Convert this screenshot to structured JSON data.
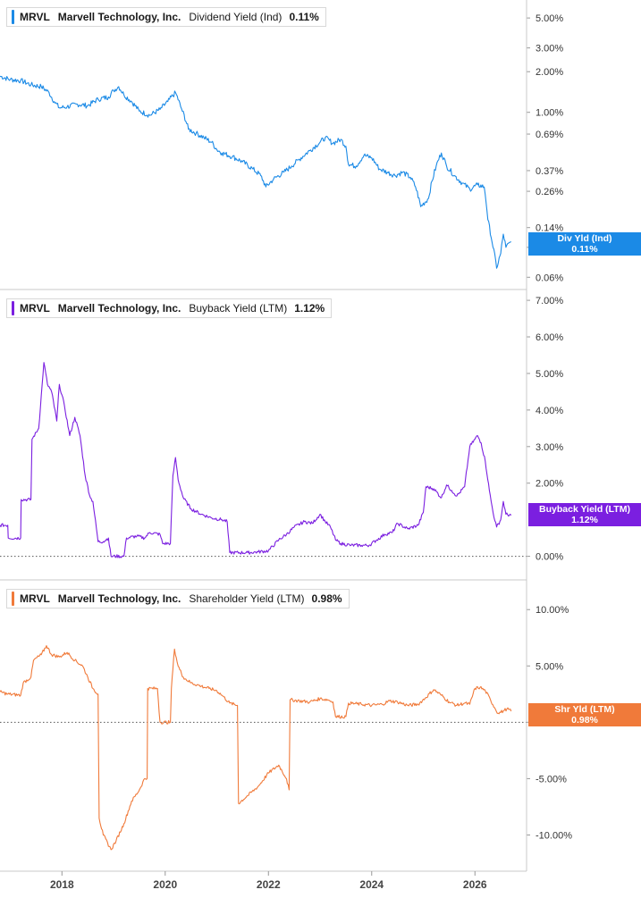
{
  "chart_data": [
    {
      "type": "line",
      "ticker": "MRVL",
      "company": "Marvell Technology, Inc.",
      "metric": "Dividend Yield (Ind)",
      "current_value": "0.11%",
      "tag_label": "Div Yld (Ind)",
      "color": "#1b8ae6",
      "y_scale": "log",
      "ylim": [
        0.055,
        6.2
      ],
      "y_ticks": [
        {
          "value": 5.0,
          "label": "5.00%"
        },
        {
          "value": 3.0,
          "label": "3.00%"
        },
        {
          "value": 2.0,
          "label": "2.00%"
        },
        {
          "value": 1.0,
          "label": "1.00%"
        },
        {
          "value": 0.69,
          "label": "0.69%"
        },
        {
          "value": 0.37,
          "label": "0.37%"
        },
        {
          "value": 0.26,
          "label": "0.26%"
        },
        {
          "value": 0.14,
          "label": "0.14%"
        },
        {
          "value": 0.1,
          "label": "0.1"
        },
        {
          "value": 0.06,
          "label": "0.06%"
        }
      ],
      "zero_line": false,
      "points": [
        [
          2016.8,
          1.85
        ],
        [
          2017.0,
          1.75
        ],
        [
          2017.2,
          1.72
        ],
        [
          2017.4,
          1.6
        ],
        [
          2017.6,
          1.55
        ],
        [
          2017.75,
          1.4
        ],
        [
          2017.85,
          1.2
        ],
        [
          2017.95,
          1.08
        ],
        [
          2018.1,
          1.1
        ],
        [
          2018.3,
          1.15
        ],
        [
          2018.5,
          1.12
        ],
        [
          2018.7,
          1.25
        ],
        [
          2018.9,
          1.3
        ],
        [
          2019.0,
          1.45
        ],
        [
          2019.1,
          1.55
        ],
        [
          2019.2,
          1.35
        ],
        [
          2019.35,
          1.2
        ],
        [
          2019.5,
          1.02
        ],
        [
          2019.7,
          0.95
        ],
        [
          2019.9,
          1.05
        ],
        [
          2020.05,
          1.2
        ],
        [
          2020.2,
          1.4
        ],
        [
          2020.3,
          1.1
        ],
        [
          2020.45,
          0.75
        ],
        [
          2020.6,
          0.7
        ],
        [
          2020.75,
          0.65
        ],
        [
          2020.9,
          0.6
        ],
        [
          2021.0,
          0.53
        ],
        [
          2021.1,
          0.5
        ],
        [
          2021.3,
          0.47
        ],
        [
          2021.5,
          0.43
        ],
        [
          2021.7,
          0.38
        ],
        [
          2021.85,
          0.34
        ],
        [
          2021.95,
          0.28
        ],
        [
          2022.1,
          0.32
        ],
        [
          2022.3,
          0.36
        ],
        [
          2022.45,
          0.4
        ],
        [
          2022.6,
          0.45
        ],
        [
          2022.8,
          0.52
        ],
        [
          2023.0,
          0.6
        ],
        [
          2023.1,
          0.65
        ],
        [
          2023.25,
          0.59
        ],
        [
          2023.4,
          0.63
        ],
        [
          2023.5,
          0.56
        ],
        [
          2023.55,
          0.41
        ],
        [
          2023.7,
          0.4
        ],
        [
          2023.85,
          0.48
        ],
        [
          2024.0,
          0.46
        ],
        [
          2024.15,
          0.38
        ],
        [
          2024.3,
          0.36
        ],
        [
          2024.45,
          0.34
        ],
        [
          2024.6,
          0.36
        ],
        [
          2024.75,
          0.33
        ],
        [
          2024.85,
          0.28
        ],
        [
          2024.95,
          0.2
        ],
        [
          2025.1,
          0.23
        ],
        [
          2025.25,
          0.4
        ],
        [
          2025.35,
          0.5
        ],
        [
          2025.45,
          0.4
        ],
        [
          2025.6,
          0.34
        ],
        [
          2025.75,
          0.3
        ],
        [
          2025.9,
          0.27
        ],
        [
          2026.05,
          0.29
        ],
        [
          2026.18,
          0.28
        ],
        [
          2026.25,
          0.16
        ],
        [
          2026.33,
          0.11
        ],
        [
          2026.42,
          0.07
        ],
        [
          2026.5,
          0.09
        ],
        [
          2026.55,
          0.125
        ],
        [
          2026.6,
          0.1
        ],
        [
          2026.7,
          0.11
        ]
      ]
    },
    {
      "type": "line",
      "ticker": "MRVL",
      "company": "Marvell Technology, Inc.",
      "metric": "Buyback Yield (LTM)",
      "current_value": "1.12%",
      "tag_label": "Buyback Yield (LTM)",
      "color": "#7b1fe0",
      "y_scale": "linear",
      "ylim": [
        -0.45,
        7.1
      ],
      "y_ticks": [
        {
          "value": 7,
          "label": "7.00%"
        },
        {
          "value": 6,
          "label": "6.00%"
        },
        {
          "value": 5,
          "label": "5.00%"
        },
        {
          "value": 4,
          "label": "4.00%"
        },
        {
          "value": 3,
          "label": "3.00%"
        },
        {
          "value": 2,
          "label": "2.00%"
        },
        {
          "value": 0,
          "label": "0.00%"
        }
      ],
      "zero_line": true,
      "points": [
        [
          2016.8,
          0.85
        ],
        [
          2016.95,
          0.85
        ],
        [
          2016.96,
          0.5
        ],
        [
          2017.2,
          0.5
        ],
        [
          2017.21,
          1.55
        ],
        [
          2017.4,
          1.55
        ],
        [
          2017.42,
          3.2
        ],
        [
          2017.55,
          3.5
        ],
        [
          2017.65,
          5.3
        ],
        [
          2017.72,
          4.7
        ],
        [
          2017.8,
          4.5
        ],
        [
          2017.9,
          3.7
        ],
        [
          2017.95,
          4.7
        ],
        [
          2018.05,
          4.1
        ],
        [
          2018.15,
          3.3
        ],
        [
          2018.25,
          3.8
        ],
        [
          2018.35,
          3.3
        ],
        [
          2018.45,
          2.2
        ],
        [
          2018.55,
          1.6
        ],
        [
          2018.6,
          1.5
        ],
        [
          2018.7,
          0.4
        ],
        [
          2018.8,
          0.4
        ],
        [
          2018.9,
          0.5
        ],
        [
          2018.95,
          0.0
        ],
        [
          2019.2,
          0.0
        ],
        [
          2019.25,
          0.5
        ],
        [
          2019.45,
          0.55
        ],
        [
          2019.6,
          0.5
        ],
        [
          2019.7,
          0.65
        ],
        [
          2019.9,
          0.6
        ],
        [
          2019.95,
          0.35
        ],
        [
          2020.1,
          0.35
        ],
        [
          2020.15,
          2.2
        ],
        [
          2020.2,
          2.7
        ],
        [
          2020.25,
          2.1
        ],
        [
          2020.35,
          1.6
        ],
        [
          2020.5,
          1.3
        ],
        [
          2020.7,
          1.15
        ],
        [
          2020.9,
          1.05
        ],
        [
          2021.1,
          1.0
        ],
        [
          2021.2,
          0.95
        ],
        [
          2021.25,
          0.1
        ],
        [
          2021.6,
          0.1
        ],
        [
          2021.8,
          0.12
        ],
        [
          2022.0,
          0.15
        ],
        [
          2022.2,
          0.45
        ],
        [
          2022.35,
          0.6
        ],
        [
          2022.5,
          0.8
        ],
        [
          2022.7,
          0.95
        ],
        [
          2022.85,
          0.9
        ],
        [
          2023.0,
          1.15
        ],
        [
          2023.1,
          0.95
        ],
        [
          2023.2,
          0.8
        ],
        [
          2023.3,
          0.45
        ],
        [
          2023.4,
          0.35
        ],
        [
          2023.6,
          0.3
        ],
        [
          2023.8,
          0.3
        ],
        [
          2023.95,
          0.3
        ],
        [
          2024.1,
          0.45
        ],
        [
          2024.25,
          0.6
        ],
        [
          2024.4,
          0.65
        ],
        [
          2024.5,
          0.9
        ],
        [
          2024.7,
          0.75
        ],
        [
          2024.9,
          0.85
        ],
        [
          2025.0,
          1.2
        ],
        [
          2025.05,
          1.9
        ],
        [
          2025.2,
          1.85
        ],
        [
          2025.35,
          1.6
        ],
        [
          2025.45,
          1.95
        ],
        [
          2025.55,
          1.8
        ],
        [
          2025.65,
          1.65
        ],
        [
          2025.8,
          1.9
        ],
        [
          2025.9,
          3.0
        ],
        [
          2026.05,
          3.3
        ],
        [
          2026.12,
          3.1
        ],
        [
          2026.2,
          2.6
        ],
        [
          2026.28,
          1.8
        ],
        [
          2026.35,
          1.2
        ],
        [
          2026.42,
          0.8
        ],
        [
          2026.5,
          1.0
        ],
        [
          2026.55,
          1.5
        ],
        [
          2026.6,
          1.15
        ],
        [
          2026.7,
          1.12
        ]
      ]
    },
    {
      "type": "line",
      "ticker": "MRVL",
      "company": "Marvell Technology, Inc.",
      "metric": "Shareholder Yield (LTM)",
      "current_value": "0.98%",
      "tag_label": "Shr Yld (LTM)",
      "color": "#f07a3a",
      "y_scale": "linear",
      "ylim": [
        -12.5,
        12.0
      ],
      "y_ticks": [
        {
          "value": 10,
          "label": "10.00%"
        },
        {
          "value": 5,
          "label": "5.00%"
        },
        {
          "value": 0,
          "label": "0.00%"
        },
        {
          "value": -5,
          "label": "-5.00%"
        },
        {
          "value": -10,
          "label": "-10.00%"
        }
      ],
      "zero_line": true,
      "points": [
        [
          2016.8,
          2.7
        ],
        [
          2016.95,
          2.5
        ],
        [
          2017.2,
          2.4
        ],
        [
          2017.25,
          3.5
        ],
        [
          2017.4,
          4.0
        ],
        [
          2017.45,
          5.5
        ],
        [
          2017.6,
          6.0
        ],
        [
          2017.7,
          6.8
        ],
        [
          2017.8,
          6.0
        ],
        [
          2017.95,
          5.8
        ],
        [
          2018.1,
          6.2
        ],
        [
          2018.25,
          5.5
        ],
        [
          2018.4,
          5.0
        ],
        [
          2018.5,
          4.0
        ],
        [
          2018.6,
          3.0
        ],
        [
          2018.7,
          2.5
        ],
        [
          2018.72,
          -8.5
        ],
        [
          2018.8,
          -10.0
        ],
        [
          2018.95,
          -11.3
        ],
        [
          2019.05,
          -10.5
        ],
        [
          2019.2,
          -9.0
        ],
        [
          2019.35,
          -7.0
        ],
        [
          2019.5,
          -6.0
        ],
        [
          2019.6,
          -5.0
        ],
        [
          2019.65,
          -5.0
        ],
        [
          2019.66,
          3.0
        ],
        [
          2019.85,
          3.0
        ],
        [
          2019.9,
          0.0
        ],
        [
          2020.1,
          0.0
        ],
        [
          2020.12,
          3.0
        ],
        [
          2020.18,
          6.5
        ],
        [
          2020.25,
          5.0
        ],
        [
          2020.35,
          4.0
        ],
        [
          2020.5,
          3.5
        ],
        [
          2020.7,
          3.2
        ],
        [
          2020.85,
          3.0
        ],
        [
          2021.0,
          2.8
        ],
        [
          2021.1,
          2.4
        ],
        [
          2021.25,
          1.7
        ],
        [
          2021.4,
          1.5
        ],
        [
          2021.42,
          -7.2
        ],
        [
          2021.6,
          -6.5
        ],
        [
          2021.8,
          -5.7
        ],
        [
          2022.0,
          -4.5
        ],
        [
          2022.2,
          -3.8
        ],
        [
          2022.35,
          -5.0
        ],
        [
          2022.4,
          -6.0
        ],
        [
          2022.42,
          2.0
        ],
        [
          2022.6,
          1.9
        ],
        [
          2022.8,
          1.8
        ],
        [
          2023.0,
          2.1
        ],
        [
          2023.15,
          2.0
        ],
        [
          2023.25,
          1.8
        ],
        [
          2023.3,
          0.5
        ],
        [
          2023.5,
          0.5
        ],
        [
          2023.55,
          1.7
        ],
        [
          2023.8,
          1.6
        ],
        [
          2024.0,
          1.5
        ],
        [
          2024.2,
          1.6
        ],
        [
          2024.35,
          1.9
        ],
        [
          2024.5,
          1.8
        ],
        [
          2024.7,
          1.5
        ],
        [
          2024.9,
          1.6
        ],
        [
          2025.05,
          2.2
        ],
        [
          2025.2,
          2.9
        ],
        [
          2025.35,
          2.4
        ],
        [
          2025.5,
          1.8
        ],
        [
          2025.65,
          1.5
        ],
        [
          2025.8,
          1.7
        ],
        [
          2025.9,
          1.6
        ],
        [
          2026.0,
          3.0
        ],
        [
          2026.1,
          3.1
        ],
        [
          2026.2,
          2.8
        ],
        [
          2026.3,
          2.0
        ],
        [
          2026.38,
          1.3
        ],
        [
          2026.45,
          0.8
        ],
        [
          2026.55,
          1.0
        ],
        [
          2026.62,
          1.2
        ],
        [
          2026.7,
          0.98
        ]
      ]
    }
  ],
  "x_axis": {
    "xlim": [
      2016.8,
      2027.0
    ],
    "ticks": [
      {
        "value": 2018,
        "label": "2018"
      },
      {
        "value": 2020,
        "label": "2020"
      },
      {
        "value": 2022,
        "label": "2022"
      },
      {
        "value": 2024,
        "label": "2024"
      },
      {
        "value": 2026,
        "label": "2026"
      }
    ]
  }
}
